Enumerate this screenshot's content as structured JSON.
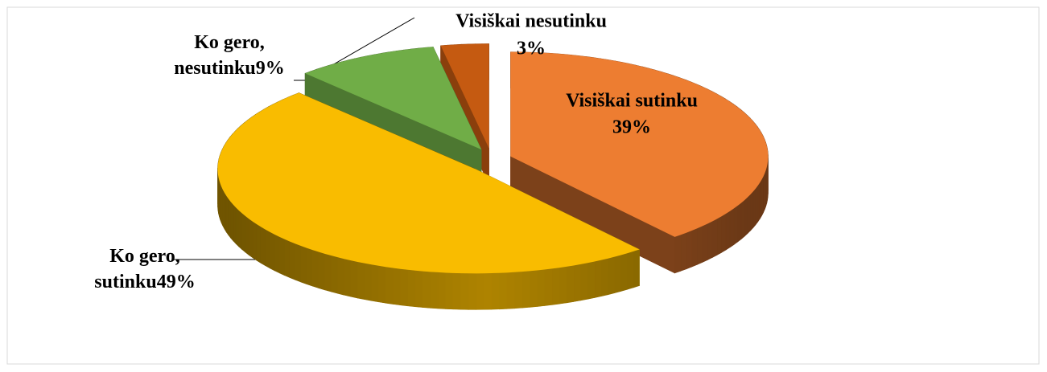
{
  "chart_data": {
    "type": "pie3d",
    "categories": [
      "Visiškai sutinku",
      "Ko gero, sutinku",
      "Ko gero, nesutinku",
      "Visiškai nesutinku"
    ],
    "values": [
      39,
      49,
      9,
      3
    ],
    "value_labels": [
      "39%",
      "49%",
      "9%",
      "3%"
    ],
    "colors": [
      "#ed7d31",
      "#f9bc00",
      "#70ad47",
      "#c55a11"
    ]
  }
}
